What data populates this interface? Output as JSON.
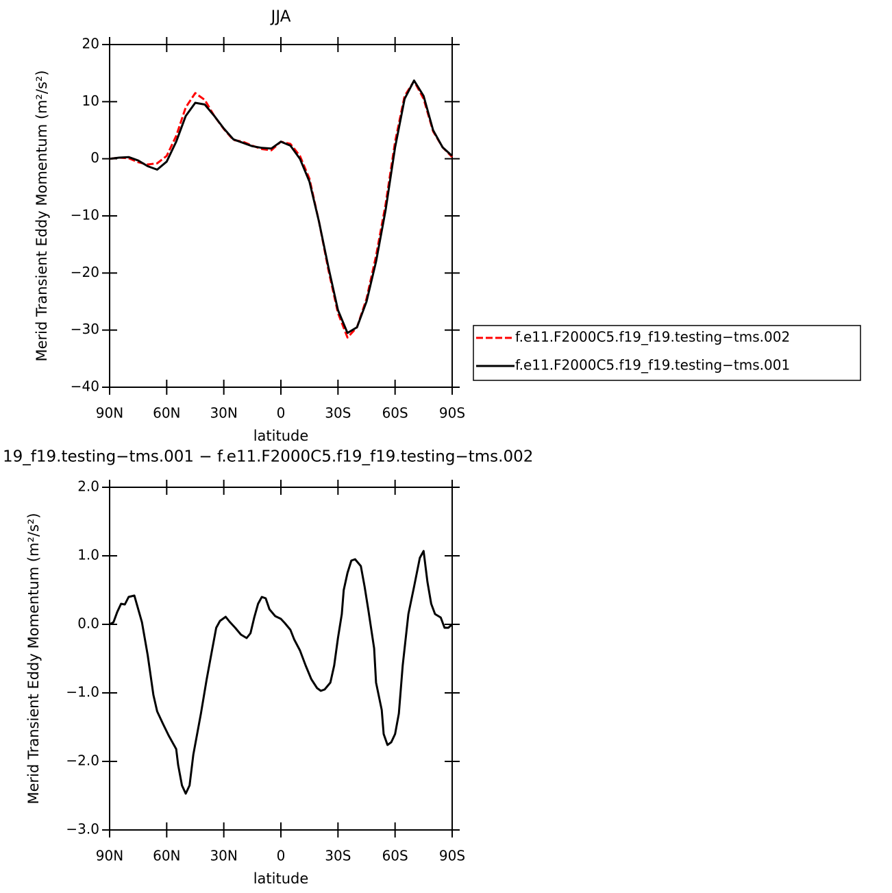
{
  "chart_data": [
    {
      "type": "line",
      "title": "JJA",
      "x_label": "latitude",
      "y_label": "Merid Transient Eddy Momentum (m²/s²)",
      "xlim": [
        90,
        -90
      ],
      "xticks": [
        {
          "value": 90,
          "label": "90N"
        },
        {
          "value": 60,
          "label": "60N"
        },
        {
          "value": 30,
          "label": "30N"
        },
        0,
        {
          "value": -30,
          "label": "30S"
        },
        {
          "value": -60,
          "label": "60S"
        },
        {
          "value": -90,
          "label": "90S"
        }
      ],
      "ylim": [
        -40,
        20
      ],
      "yticks": [
        {
          "value": -40,
          "label": "−40"
        },
        {
          "value": -30,
          "label": "−30"
        },
        {
          "value": -20,
          "label": "−20"
        },
        {
          "value": -10,
          "label": "−10"
        },
        0,
        10,
        20
      ],
      "legend": "right",
      "x": [
        90,
        85,
        80,
        75,
        70,
        65,
        60,
        55,
        50,
        45,
        40,
        35,
        30,
        25,
        20,
        15,
        10,
        5,
        0,
        -5,
        -10,
        -15,
        -20,
        -25,
        -30,
        -35,
        -40,
        -45,
        -50,
        -55,
        -60,
        -65,
        -70,
        -75,
        -80,
        -85,
        -90
      ],
      "series": [
        {
          "name": "f.e11.F2000C5.f19_f19.testing−tms.002",
          "color": "#ff0000",
          "line_style": "dashed",
          "values": [
            0,
            0.2,
            0.1,
            -0.6,
            -1,
            -0.8,
            0.5,
            4,
            9,
            11.5,
            10.3,
            7.5,
            5.2,
            3.3,
            3,
            2.3,
            1.7,
            1.5,
            3,
            2.6,
            0.5,
            -3.5,
            -11,
            -19.5,
            -27,
            -31.3,
            -29.5,
            -24.5,
            -17,
            -8,
            3,
            11,
            13.6,
            10.5,
            4.8,
            2,
            0.3
          ]
        },
        {
          "name": "f.e11.F2000C5.f19_f19.testing−tms.001",
          "color": "#000000",
          "line_style": "solid",
          "values": [
            0,
            0.2,
            0.3,
            -0.3,
            -1.3,
            -1.9,
            -0.5,
            3,
            7.5,
            9.8,
            9.5,
            7.5,
            5.3,
            3.4,
            2.8,
            2.2,
            1.9,
            1.8,
            3,
            2.3,
            0,
            -4,
            -11,
            -19,
            -26.5,
            -30.5,
            -29.5,
            -25,
            -18,
            -9,
            2,
            10.5,
            13.7,
            11,
            5,
            2,
            0.5
          ]
        }
      ]
    },
    {
      "type": "line",
      "title": "19_f19.testing−tms.001 − f.e11.F2000C5.f19_f19.testing−tms.002",
      "x_label": "latitude",
      "y_label": "Merid Transient Eddy Momentum (m²/s²)",
      "xlim": [
        90,
        -90
      ],
      "xticks": [
        {
          "value": 90,
          "label": "90N"
        },
        {
          "value": 60,
          "label": "60N"
        },
        {
          "value": 30,
          "label": "30N"
        },
        0,
        {
          "value": -30,
          "label": "30S"
        },
        {
          "value": -60,
          "label": "60S"
        },
        {
          "value": -90,
          "label": "90S"
        }
      ],
      "ylim": [
        -3,
        2
      ],
      "yticks": [
        {
          "value": -3,
          "label": "−3.0"
        },
        {
          "value": -2,
          "label": "−2.0"
        },
        {
          "value": -1,
          "label": "−1.0"
        },
        {
          "value": 0,
          "label": "0.0"
        },
        {
          "value": 1,
          "label": "1.0"
        },
        {
          "value": 2,
          "label": "2.0"
        }
      ],
      "x": [
        90,
        88,
        86,
        84,
        82,
        80,
        77,
        73,
        70,
        67,
        65,
        62,
        59,
        55,
        54,
        52,
        50,
        48,
        46,
        42,
        39,
        36,
        34,
        32,
        29,
        27,
        24,
        21,
        18,
        16,
        14,
        12,
        10,
        8,
        6,
        3,
        0,
        -2,
        -5,
        -7,
        -10,
        -13,
        -16,
        -19,
        -21,
        -23,
        -26,
        -28,
        -30,
        -32,
        -33,
        -35,
        -37,
        -39,
        -42,
        -44,
        -46,
        -49,
        -50,
        -53,
        -54,
        -56,
        -58,
        -60,
        -62,
        -64,
        -67,
        -70,
        -73,
        -75,
        -77,
        -79,
        -81,
        -84,
        -86,
        -88,
        -90
      ],
      "series": [
        {
          "color": "#000000",
          "line_style": "solid",
          "values": [
            0,
            0.03,
            0.18,
            0.3,
            0.29,
            0.4,
            0.42,
            0.03,
            -0.45,
            -1.03,
            -1.27,
            -1.45,
            -1.62,
            -1.82,
            -2.05,
            -2.35,
            -2.47,
            -2.35,
            -1.9,
            -1.3,
            -0.8,
            -0.35,
            -0.05,
            0.05,
            0.11,
            0.04,
            -0.05,
            -0.15,
            -0.2,
            -0.13,
            0.1,
            0.3,
            0.4,
            0.38,
            0.22,
            0.12,
            0.08,
            0.02,
            -0.08,
            -0.22,
            -0.38,
            -0.6,
            -0.8,
            -0.93,
            -0.97,
            -0.95,
            -0.85,
            -0.6,
            -0.2,
            0.15,
            0.5,
            0.75,
            0.93,
            0.95,
            0.85,
            0.55,
            0.2,
            -0.35,
            -0.85,
            -1.25,
            -1.6,
            -1.76,
            -1.72,
            -1.6,
            -1.3,
            -0.6,
            0.15,
            0.55,
            0.97,
            1.07,
            0.62,
            0.3,
            0.15,
            0.1,
            -0.05,
            -0.05,
            0
          ]
        }
      ]
    }
  ]
}
